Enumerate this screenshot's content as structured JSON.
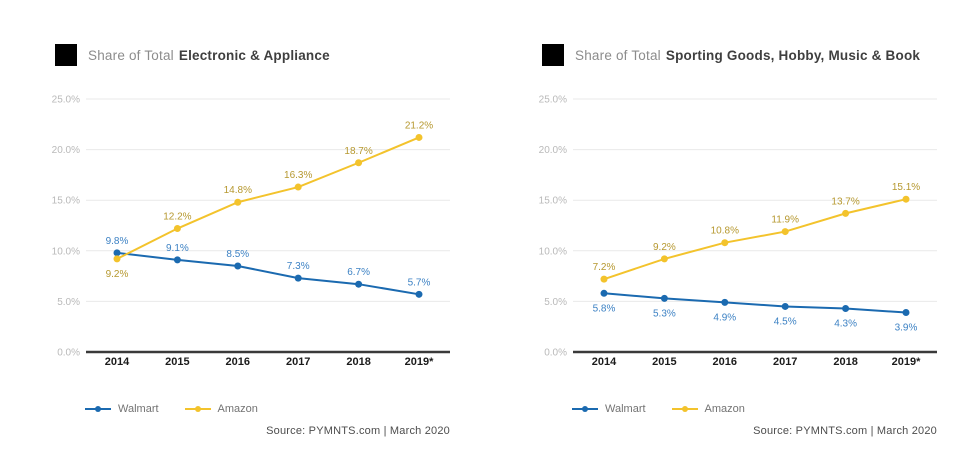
{
  "chart_data": [
    {
      "type": "line",
      "title_prefix": "Share of Total",
      "title_bold": "Electronic & Appliance",
      "categories": [
        "2014",
        "2015",
        "2016",
        "2017",
        "2018",
        "2019*"
      ],
      "series": [
        {
          "name": "Walmart",
          "color": "#1b6ab0",
          "label_color": "#3d82c4",
          "values": [
            9.8,
            9.1,
            8.5,
            7.3,
            6.7,
            5.7
          ],
          "label_side": "above",
          "label_side_overrides": {}
        },
        {
          "name": "Amazon",
          "color": "#f3c32c",
          "label_color": "#b6982f",
          "values": [
            9.2,
            12.2,
            14.8,
            16.3,
            18.7,
            21.2
          ],
          "label_side": "above",
          "label_side_overrides": {
            "0": "below"
          }
        }
      ],
      "ylim": [
        0,
        25
      ],
      "y_ticks": [
        {
          "v": 0,
          "label": "0.0%"
        },
        {
          "v": 5,
          "label": "5.0%"
        },
        {
          "v": 10,
          "label": "10.0%"
        },
        {
          "v": 15,
          "label": "15.0%"
        },
        {
          "v": 20,
          "label": "20.0%"
        },
        {
          "v": 25,
          "label": "25.0%"
        }
      ],
      "grid": true,
      "legend_position": "bottom-left",
      "source": "Source: PYMNTS.com  |  March 2020"
    },
    {
      "type": "line",
      "title_prefix": "Share of Total",
      "title_bold": "Sporting Goods, Hobby, Music & Book",
      "categories": [
        "2014",
        "2015",
        "2016",
        "2017",
        "2018",
        "2019*"
      ],
      "series": [
        {
          "name": "Walmart",
          "color": "#1b6ab0",
          "label_color": "#3d82c4",
          "values": [
            5.8,
            5.3,
            4.9,
            4.5,
            4.3,
            3.9
          ],
          "label_side": "below",
          "label_side_overrides": {}
        },
        {
          "name": "Amazon",
          "color": "#f3c32c",
          "label_color": "#b6982f",
          "values": [
            7.2,
            9.2,
            10.8,
            11.9,
            13.7,
            15.1
          ],
          "label_side": "above",
          "label_side_overrides": {}
        }
      ],
      "ylim": [
        0,
        25
      ],
      "y_ticks": [
        {
          "v": 0,
          "label": "0.0%"
        },
        {
          "v": 5,
          "label": "5.0%"
        },
        {
          "v": 10,
          "label": "10.0%"
        },
        {
          "v": 15,
          "label": "15.0%"
        },
        {
          "v": 20,
          "label": "20.0%"
        },
        {
          "v": 25,
          "label": "25.0%"
        }
      ],
      "grid": true,
      "legend_position": "bottom-left",
      "source": "Source: PYMNTS.com  |  March 2020"
    }
  ]
}
